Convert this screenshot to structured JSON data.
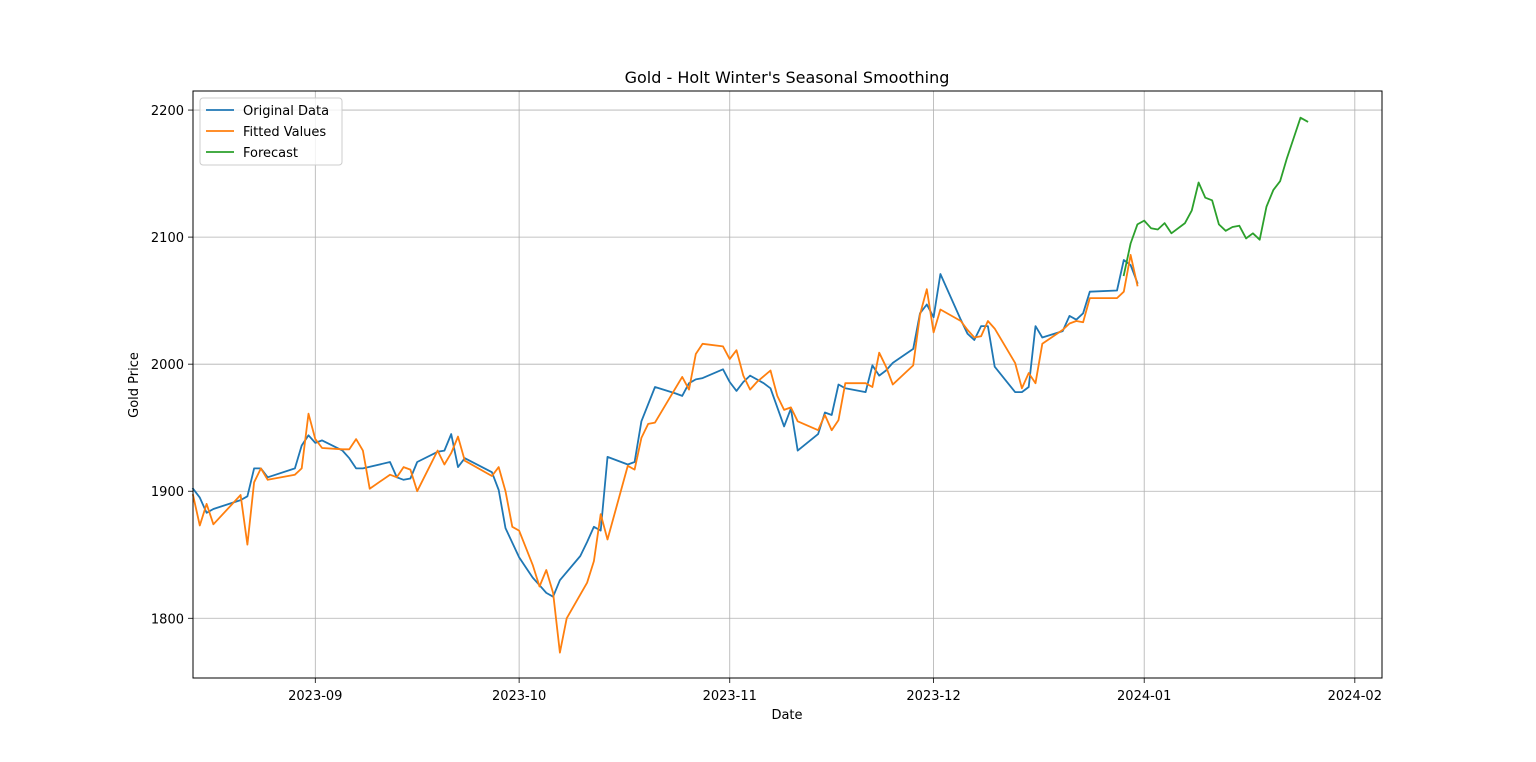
{
  "chart_data": {
    "type": "line",
    "title": "Gold - Holt Winter's Seasonal Smoothing",
    "xlabel": "Date",
    "ylabel": "Gold Price",
    "x_range": [
      "2023-08-14",
      "2024-02-05"
    ],
    "ylim": [
      1753,
      2215
    ],
    "x_ticks": [
      {
        "date": "2023-09-01",
        "label": "2023-09"
      },
      {
        "date": "2023-10-01",
        "label": "2023-10"
      },
      {
        "date": "2023-11-01",
        "label": "2023-11"
      },
      {
        "date": "2023-12-01",
        "label": "2023-12"
      },
      {
        "date": "2024-01-01",
        "label": "2024-01"
      },
      {
        "date": "2024-02-01",
        "label": "2024-02"
      }
    ],
    "y_ticks": [
      1800,
      1900,
      2000,
      2100,
      2200
    ],
    "grid": true,
    "legend_position": "top-left",
    "series": [
      {
        "name": "Original Data",
        "color": "#1f77b4",
        "points": [
          [
            "2023-08-14",
            1902
          ],
          [
            "2023-08-15",
            1895
          ],
          [
            "2023-08-16",
            1883
          ],
          [
            "2023-08-17",
            1886
          ],
          [
            "2023-08-21",
            1893
          ],
          [
            "2023-08-22",
            1896
          ],
          [
            "2023-08-23",
            1918
          ],
          [
            "2023-08-24",
            1918
          ],
          [
            "2023-08-25",
            1911
          ],
          [
            "2023-08-29",
            1918
          ],
          [
            "2023-08-30",
            1936
          ],
          [
            "2023-08-31",
            1944
          ],
          [
            "2023-09-01",
            1938
          ],
          [
            "2023-09-02",
            1940
          ],
          [
            "2023-09-05",
            1932
          ],
          [
            "2023-09-06",
            1926
          ],
          [
            "2023-09-07",
            1918
          ],
          [
            "2023-09-08",
            1918
          ],
          [
            "2023-09-12",
            1923
          ],
          [
            "2023-09-13",
            1911
          ],
          [
            "2023-09-14",
            1909
          ],
          [
            "2023-09-15",
            1910
          ],
          [
            "2023-09-16",
            1923
          ],
          [
            "2023-09-19",
            1931
          ],
          [
            "2023-09-20",
            1932
          ],
          [
            "2023-09-21",
            1945
          ],
          [
            "2023-09-22",
            1919
          ],
          [
            "2023-09-23",
            1926
          ],
          [
            "2023-09-27",
            1915
          ],
          [
            "2023-09-28",
            1901
          ],
          [
            "2023-09-29",
            1871
          ],
          [
            "2023-10-01",
            1848
          ],
          [
            "2023-10-02",
            1840
          ],
          [
            "2023-10-03",
            1832
          ],
          [
            "2023-10-04",
            1826
          ],
          [
            "2023-10-05",
            1820
          ],
          [
            "2023-10-06",
            1817
          ],
          [
            "2023-10-07",
            1830
          ],
          [
            "2023-10-10",
            1849
          ],
          [
            "2023-10-11",
            1860
          ],
          [
            "2023-10-12",
            1872
          ],
          [
            "2023-10-13",
            1869
          ],
          [
            "2023-10-14",
            1927
          ],
          [
            "2023-10-17",
            1921
          ],
          [
            "2023-10-18",
            1923
          ],
          [
            "2023-10-19",
            1955
          ],
          [
            "2023-10-21",
            1982
          ],
          [
            "2023-10-24",
            1977
          ],
          [
            "2023-10-25",
            1975
          ],
          [
            "2023-10-26",
            1985
          ],
          [
            "2023-10-27",
            1988
          ],
          [
            "2023-10-28",
            1989
          ],
          [
            "2023-10-31",
            1996
          ],
          [
            "2023-11-01",
            1986
          ],
          [
            "2023-11-02",
            1979
          ],
          [
            "2023-11-03",
            1986
          ],
          [
            "2023-11-04",
            1991
          ],
          [
            "2023-11-06",
            1985
          ],
          [
            "2023-11-07",
            1981
          ],
          [
            "2023-11-09",
            1951
          ],
          [
            "2023-11-10",
            1965
          ],
          [
            "2023-11-11",
            1932
          ],
          [
            "2023-11-14",
            1945
          ],
          [
            "2023-11-15",
            1962
          ],
          [
            "2023-11-16",
            1960
          ],
          [
            "2023-11-17",
            1984
          ],
          [
            "2023-11-18",
            1981
          ],
          [
            "2023-11-21",
            1978
          ],
          [
            "2023-11-22",
            1999
          ],
          [
            "2023-11-23",
            1991
          ],
          [
            "2023-11-24",
            1995
          ],
          [
            "2023-11-25",
            2001
          ],
          [
            "2023-11-28",
            2012
          ],
          [
            "2023-11-29",
            2040
          ],
          [
            "2023-11-30",
            2047
          ],
          [
            "2023-12-01",
            2037
          ],
          [
            "2023-12-02",
            2071
          ],
          [
            "2023-12-05",
            2035
          ],
          [
            "2023-12-06",
            2024
          ],
          [
            "2023-12-07",
            2019
          ],
          [
            "2023-12-08",
            2030
          ],
          [
            "2023-12-09",
            2030
          ],
          [
            "2023-12-10",
            1998
          ],
          [
            "2023-12-13",
            1978
          ],
          [
            "2023-12-14",
            1978
          ],
          [
            "2023-12-15",
            1982
          ],
          [
            "2023-12-16",
            2030
          ],
          [
            "2023-12-17",
            2021
          ],
          [
            "2023-12-20",
            2026
          ],
          [
            "2023-12-21",
            2038
          ],
          [
            "2023-12-22",
            2035
          ],
          [
            "2023-12-23",
            2040
          ],
          [
            "2023-12-24",
            2057
          ],
          [
            "2023-12-28",
            2058
          ],
          [
            "2023-12-29",
            2082
          ],
          [
            "2023-12-30",
            2078
          ],
          [
            "2023-12-31",
            2064
          ]
        ]
      },
      {
        "name": "Fitted Values",
        "color": "#ff7f0e",
        "points": [
          [
            "2023-08-14",
            1897
          ],
          [
            "2023-08-15",
            1873
          ],
          [
            "2023-08-16",
            1890
          ],
          [
            "2023-08-17",
            1874
          ],
          [
            "2023-08-21",
            1897
          ],
          [
            "2023-08-22",
            1858
          ],
          [
            "2023-08-23",
            1907
          ],
          [
            "2023-08-24",
            1918
          ],
          [
            "2023-08-25",
            1909
          ],
          [
            "2023-08-29",
            1913
          ],
          [
            "2023-08-30",
            1918
          ],
          [
            "2023-08-31",
            1961
          ],
          [
            "2023-09-01",
            1941
          ],
          [
            "2023-09-02",
            1934
          ],
          [
            "2023-09-05",
            1933
          ],
          [
            "2023-09-06",
            1933
          ],
          [
            "2023-09-07",
            1941
          ],
          [
            "2023-09-08",
            1932
          ],
          [
            "2023-09-09",
            1902
          ],
          [
            "2023-09-12",
            1913
          ],
          [
            "2023-09-13",
            1911
          ],
          [
            "2023-09-14",
            1919
          ],
          [
            "2023-09-15",
            1917
          ],
          [
            "2023-09-16",
            1900
          ],
          [
            "2023-09-19",
            1932
          ],
          [
            "2023-09-20",
            1921
          ],
          [
            "2023-09-21",
            1930
          ],
          [
            "2023-09-22",
            1943
          ],
          [
            "2023-09-23",
            1924
          ],
          [
            "2023-09-27",
            1912
          ],
          [
            "2023-09-28",
            1919
          ],
          [
            "2023-09-29",
            1900
          ],
          [
            "2023-09-30",
            1872
          ],
          [
            "2023-10-01",
            1869
          ],
          [
            "2023-10-03",
            1842
          ],
          [
            "2023-10-04",
            1825
          ],
          [
            "2023-10-05",
            1838
          ],
          [
            "2023-10-06",
            1820
          ],
          [
            "2023-10-07",
            1773
          ],
          [
            "2023-10-08",
            1800
          ],
          [
            "2023-10-11",
            1828
          ],
          [
            "2023-10-12",
            1845
          ],
          [
            "2023-10-13",
            1882
          ],
          [
            "2023-10-14",
            1862
          ],
          [
            "2023-10-17",
            1920
          ],
          [
            "2023-10-18",
            1917
          ],
          [
            "2023-10-19",
            1942
          ],
          [
            "2023-10-20",
            1953
          ],
          [
            "2023-10-21",
            1954
          ],
          [
            "2023-10-25",
            1990
          ],
          [
            "2023-10-26",
            1980
          ],
          [
            "2023-10-27",
            2008
          ],
          [
            "2023-10-28",
            2016
          ],
          [
            "2023-10-31",
            2014
          ],
          [
            "2023-11-01",
            2004
          ],
          [
            "2023-11-02",
            2011
          ],
          [
            "2023-11-03",
            1991
          ],
          [
            "2023-11-04",
            1980
          ],
          [
            "2023-11-05",
            1986
          ],
          [
            "2023-11-07",
            1995
          ],
          [
            "2023-11-08",
            1975
          ],
          [
            "2023-11-09",
            1964
          ],
          [
            "2023-11-10",
            1966
          ],
          [
            "2023-11-11",
            1955
          ],
          [
            "2023-11-14",
            1948
          ],
          [
            "2023-11-15",
            1960
          ],
          [
            "2023-11-16",
            1948
          ],
          [
            "2023-11-17",
            1956
          ],
          [
            "2023-11-18",
            1985
          ],
          [
            "2023-11-21",
            1985
          ],
          [
            "2023-11-22",
            1982
          ],
          [
            "2023-11-23",
            2009
          ],
          [
            "2023-11-24",
            1998
          ],
          [
            "2023-11-25",
            1984
          ],
          [
            "2023-11-28",
            1999
          ],
          [
            "2023-11-29",
            2039
          ],
          [
            "2023-11-30",
            2059
          ],
          [
            "2023-12-01",
            2025
          ],
          [
            "2023-12-02",
            2043
          ],
          [
            "2023-12-05",
            2034
          ],
          [
            "2023-12-06",
            2027
          ],
          [
            "2023-12-07",
            2021
          ],
          [
            "2023-12-08",
            2022
          ],
          [
            "2023-12-09",
            2034
          ],
          [
            "2023-12-10",
            2028
          ],
          [
            "2023-12-13",
            2001
          ],
          [
            "2023-12-14",
            1981
          ],
          [
            "2023-12-15",
            1993
          ],
          [
            "2023-12-16",
            1985
          ],
          [
            "2023-12-17",
            2016
          ],
          [
            "2023-12-20",
            2027
          ],
          [
            "2023-12-21",
            2032
          ],
          [
            "2023-12-22",
            2034
          ],
          [
            "2023-12-23",
            2033
          ],
          [
            "2023-12-24",
            2052
          ],
          [
            "2023-12-28",
            2052
          ],
          [
            "2023-12-29",
            2057
          ],
          [
            "2023-12-30",
            2086
          ],
          [
            "2023-12-31",
            2062
          ]
        ]
      },
      {
        "name": "Forecast",
        "color": "#2ca02c",
        "points": [
          [
            "2023-12-29",
            2070
          ],
          [
            "2023-12-30",
            2095
          ],
          [
            "2023-12-31",
            2110
          ],
          [
            "2024-01-01",
            2113
          ],
          [
            "2024-01-02",
            2107
          ],
          [
            "2024-01-03",
            2106
          ],
          [
            "2024-01-04",
            2111
          ],
          [
            "2024-01-05",
            2103
          ],
          [
            "2024-01-07",
            2111
          ],
          [
            "2024-01-08",
            2121
          ],
          [
            "2024-01-09",
            2143
          ],
          [
            "2024-01-10",
            2131
          ],
          [
            "2024-01-11",
            2129
          ],
          [
            "2024-01-12",
            2110
          ],
          [
            "2024-01-13",
            2105
          ],
          [
            "2024-01-14",
            2108
          ],
          [
            "2024-01-15",
            2109
          ],
          [
            "2024-01-16",
            2099
          ],
          [
            "2024-01-17",
            2103
          ],
          [
            "2024-01-18",
            2098
          ],
          [
            "2024-01-19",
            2124
          ],
          [
            "2024-01-20",
            2137
          ],
          [
            "2024-01-21",
            2144
          ],
          [
            "2024-01-22",
            2162
          ],
          [
            "2024-01-23",
            2178
          ],
          [
            "2024-01-24",
            2194
          ],
          [
            "2024-01-25",
            2191
          ]
        ]
      }
    ]
  }
}
